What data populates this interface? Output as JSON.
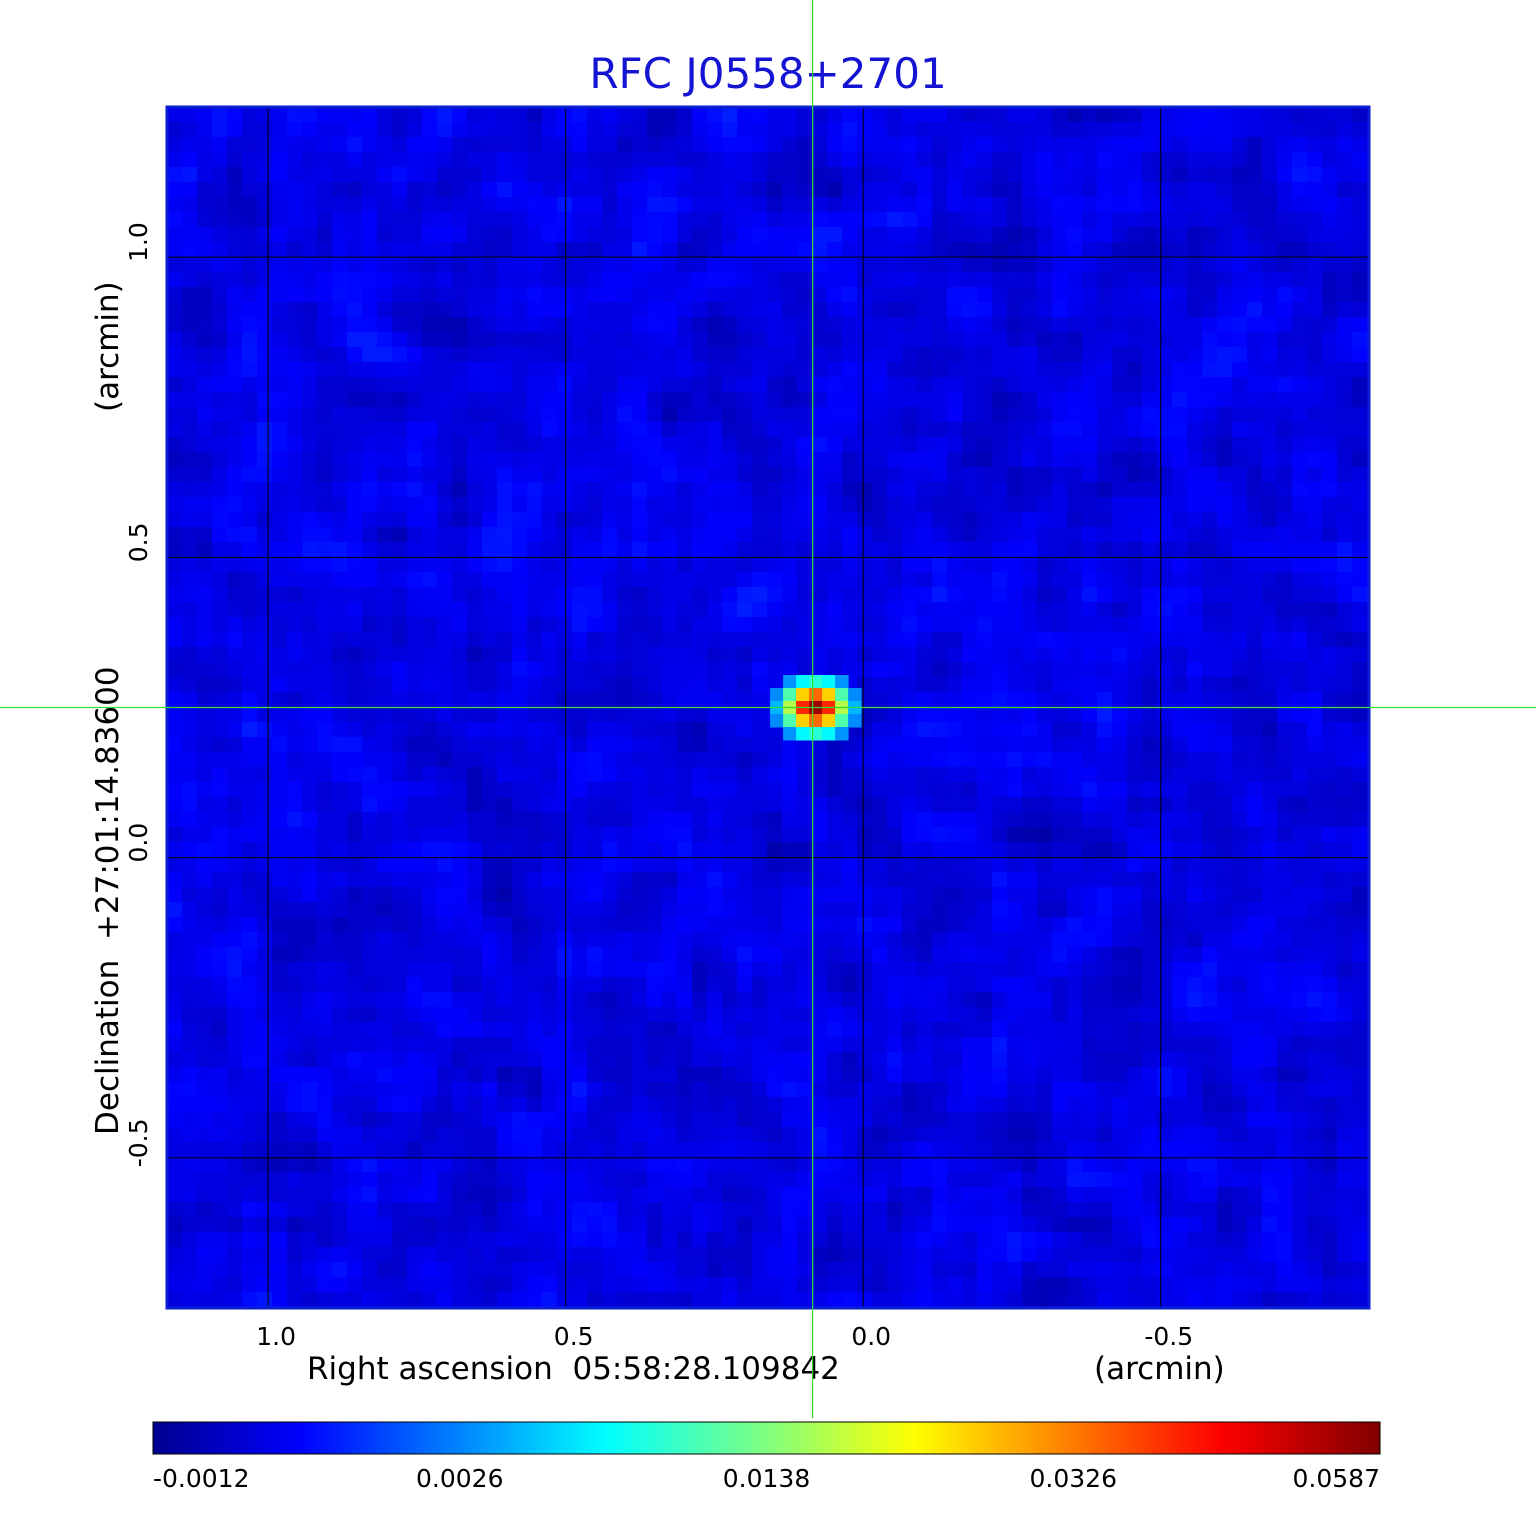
{
  "chart_data": {
    "type": "heatmap",
    "title": "RFC J0558+2701",
    "xlabel": "Right ascension  05:58:28.109842",
    "xlabel_unit": "(arcmin)",
    "ylabel": "Declination  +27:01:14.83600",
    "ylabel_unit": "(arcmin)",
    "xlim": [
      1.17,
      -0.85
    ],
    "ylim": [
      -0.75,
      1.25
    ],
    "x_ticks": [
      1.0,
      0.5,
      0.0,
      -0.5
    ],
    "x_tick_labels": [
      "1.0",
      "0.5",
      "0.0",
      "-0.5"
    ],
    "y_ticks": [
      1.0,
      0.5,
      0.0,
      -0.5
    ],
    "y_tick_labels": [
      "1.0",
      "0.5",
      "0.0",
      "-0.5"
    ],
    "grid": true,
    "colormap": "jet",
    "colorbar": {
      "tick_labels": [
        "-0.0012",
        "0.0026",
        "0.0138",
        "0.0326",
        "0.0587"
      ],
      "range": [
        -0.0012,
        0.0587
      ]
    },
    "source_peak": {
      "x": 0.08,
      "y": 0.25,
      "value": 0.0587
    },
    "crosshair": {
      "x": 0.085,
      "y": 0.25,
      "color": "#33dd33"
    },
    "background_level": 0.0
  },
  "colors": {
    "title": "#1414d2",
    "frame": "#0a1ed2",
    "grid": "#000000",
    "crosshair": "#33dd33"
  }
}
